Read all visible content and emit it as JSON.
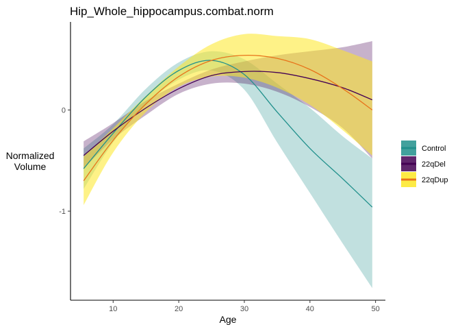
{
  "chart_data": {
    "type": "line",
    "title": "Hip_Whole_hippocampus.combat.norm",
    "xlabel": "Age",
    "ylabel_lines": [
      "Normalized",
      "Volume"
    ],
    "xlim": [
      3.5,
      51.5
    ],
    "ylim": [
      -1.88,
      0.87
    ],
    "xticks": [
      10,
      20,
      30,
      40,
      50
    ],
    "yticks": [
      -1,
      0
    ],
    "grid": false,
    "legend_position": "right",
    "series": [
      {
        "name": "Control",
        "line_color": "#21908C",
        "fill_color": "#21908C",
        "x": [
          5.5,
          10,
          15,
          20,
          25,
          30,
          35,
          40,
          45,
          49.5
        ],
        "y": [
          -0.58,
          -0.23,
          0.13,
          0.39,
          0.49,
          0.35,
          -0.02,
          -0.38,
          -0.68,
          -0.96
        ],
        "lower": [
          -0.78,
          -0.32,
          0.05,
          0.3,
          0.39,
          0.2,
          -0.32,
          -0.82,
          -1.32,
          -1.76
        ],
        "upper": [
          -0.38,
          -0.14,
          0.21,
          0.47,
          0.58,
          0.5,
          0.26,
          0.02,
          -0.26,
          -0.48
        ]
      },
      {
        "name": "22qDel",
        "line_color": "#440154",
        "fill_color": "#440154",
        "x": [
          5.5,
          10,
          15,
          20,
          25,
          30,
          35,
          40,
          45,
          49.5
        ],
        "y": [
          -0.45,
          -0.21,
          0.02,
          0.21,
          0.34,
          0.38,
          0.37,
          0.31,
          0.22,
          0.1
        ],
        "lower": [
          -0.58,
          -0.29,
          -0.05,
          0.16,
          0.26,
          0.26,
          0.18,
          0.03,
          -0.18,
          -0.48
        ],
        "upper": [
          -0.31,
          -0.13,
          0.09,
          0.26,
          0.4,
          0.48,
          0.54,
          0.58,
          0.62,
          0.68
        ]
      },
      {
        "name": "22qDup",
        "line_color": "#E8731A",
        "fill_color": "#FDE725",
        "x": [
          5.5,
          10,
          15,
          20,
          25,
          30,
          35,
          40,
          45,
          49.5
        ],
        "y": [
          -0.7,
          -0.3,
          0.06,
          0.33,
          0.49,
          0.54,
          0.51,
          0.4,
          0.21,
          0.0
        ],
        "lower": [
          -0.94,
          -0.42,
          -0.02,
          0.23,
          0.33,
          0.32,
          0.22,
          0.05,
          -0.2,
          -0.45
        ],
        "upper": [
          -0.46,
          -0.18,
          0.14,
          0.43,
          0.65,
          0.75,
          0.73,
          0.7,
          0.59,
          0.48
        ]
      }
    ]
  }
}
